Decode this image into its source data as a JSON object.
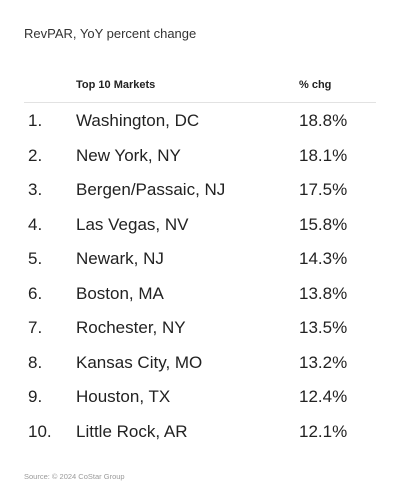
{
  "title": "RevPAR, YoY percent change",
  "table": {
    "headers": {
      "rank": "",
      "market": "Top 10 Markets",
      "change": "% chg"
    },
    "rows": [
      {
        "rank": "1.",
        "market": "Washington, DC",
        "change": "18.8%"
      },
      {
        "rank": "2.",
        "market": "New York, NY",
        "change": "18.1%"
      },
      {
        "rank": "3.",
        "market": "Bergen/Passaic, NJ",
        "change": "17.5%"
      },
      {
        "rank": "4.",
        "market": "Las Vegas, NV",
        "change": "15.8%"
      },
      {
        "rank": "5.",
        "market": "Newark, NJ",
        "change": "14.3%"
      },
      {
        "rank": "6.",
        "market": "Boston, MA",
        "change": "13.8%"
      },
      {
        "rank": "7.",
        "market": "Rochester, NY",
        "change": "13.5%"
      },
      {
        "rank": "8.",
        "market": "Kansas City, MO",
        "change": "13.2%"
      },
      {
        "rank": "9.",
        "market": "Houston, TX",
        "change": "12.4%"
      },
      {
        "rank": "10.",
        "market": "Little Rock, AR",
        "change": "12.1%"
      }
    ]
  },
  "source": "Source: © 2024 CoStar Group"
}
